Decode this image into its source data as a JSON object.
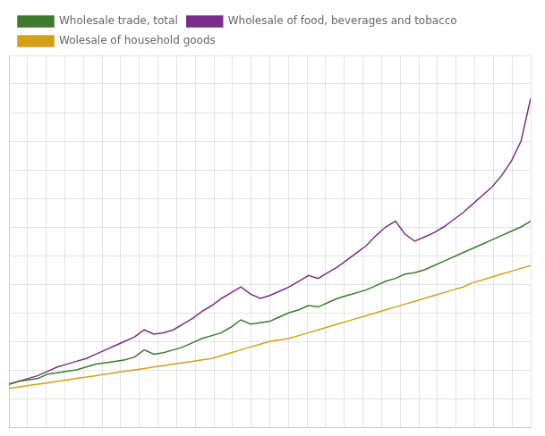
{
  "chart_data": {
    "type": "line",
    "x": [
      0,
      1,
      2,
      3,
      4,
      5,
      6,
      7,
      8,
      9,
      10,
      11,
      12,
      13,
      14,
      15,
      16,
      17,
      18,
      19,
      20,
      21,
      22,
      23,
      24,
      25,
      26,
      27,
      28,
      29,
      30,
      31,
      32,
      33,
      34,
      35,
      36,
      37,
      38,
      39,
      40,
      41,
      42,
      43,
      44,
      45,
      46,
      47,
      48,
      49,
      50,
      51,
      52,
      53,
      54
    ],
    "series": [
      {
        "name": "Wholesale trade, total",
        "color": "#3d7a2e",
        "values": [
          100.0,
          101.0,
          101.5,
          102.0,
          103.5,
          104.0,
          104.5,
          105.0,
          106.0,
          107.0,
          107.5,
          108.0,
          108.5,
          109.5,
          112.0,
          110.5,
          111.0,
          112.0,
          113.0,
          114.5,
          116.0,
          117.0,
          118.0,
          120.0,
          122.5,
          121.0,
          121.5,
          122.0,
          123.5,
          125.0,
          126.0,
          127.5,
          127.0,
          128.5,
          130.0,
          131.0,
          132.0,
          133.0,
          134.5,
          136.0,
          137.0,
          138.5,
          139.0,
          140.0,
          141.5,
          143.0,
          144.5,
          146.0,
          147.5,
          149.0,
          150.5,
          152.0,
          153.5,
          155.0,
          157.0
        ]
      },
      {
        "name": "Wholesale of food, beverages and tobacco",
        "color": "#7b2d8b",
        "values": [
          100.0,
          101.0,
          102.0,
          103.0,
          104.5,
          106.0,
          107.0,
          108.0,
          109.0,
          110.5,
          112.0,
          113.5,
          115.0,
          116.5,
          119.0,
          117.5,
          118.0,
          119.0,
          121.0,
          123.0,
          125.5,
          127.5,
          130.0,
          132.0,
          134.0,
          131.5,
          130.0,
          131.0,
          132.5,
          134.0,
          136.0,
          138.0,
          137.0,
          139.0,
          141.0,
          143.5,
          146.0,
          148.5,
          152.0,
          155.0,
          157.0,
          152.5,
          150.0,
          151.5,
          153.0,
          155.0,
          157.5,
          160.0,
          163.0,
          166.0,
          169.0,
          173.0,
          178.0,
          185.0,
          200.0
        ]
      },
      {
        "name": "Wolesale of household goods",
        "color": "#d4a017",
        "values": [
          98.5,
          99.0,
          99.5,
          100.0,
          100.5,
          101.0,
          101.5,
          102.0,
          102.5,
          103.0,
          103.5,
          104.0,
          104.5,
          105.0,
          105.5,
          106.0,
          106.5,
          107.0,
          107.5,
          108.0,
          108.5,
          109.0,
          110.0,
          111.0,
          112.0,
          113.0,
          114.0,
          115.0,
          115.5,
          116.0,
          117.0,
          118.0,
          119.0,
          120.0,
          121.0,
          122.0,
          123.0,
          124.0,
          125.0,
          126.0,
          127.0,
          128.0,
          129.0,
          130.0,
          131.0,
          132.0,
          133.0,
          134.0,
          135.5,
          136.5,
          137.5,
          138.5,
          139.5,
          140.5,
          141.5
        ]
      }
    ],
    "xlim": [
      0,
      54
    ],
    "ylim": [
      85,
      215
    ],
    "xticks": [
      0,
      1.9285714285714286,
      3.857142857142857,
      5.785714285714286,
      7.714285714285714,
      9.642857142857142,
      11.571428571428571,
      13.5,
      15.428571428571429,
      17.357142857142858,
      19.285714285714285,
      21.214285714285715,
      23.142857142857142,
      25.071428571428573,
      27,
      28.928571428571427,
      30.857142857142858,
      32.785714285714285,
      34.714285714285715,
      36.642857142857146,
      38.57142857142857,
      40.5,
      42.42857142857143,
      44.357142857142854,
      46.285714285714285,
      48.214285714285715,
      50.142857142857146,
      52.07142857142857,
      54
    ],
    "yticks": [
      85,
      95,
      105,
      115,
      125,
      135,
      145,
      155,
      165,
      175,
      185,
      195,
      205,
      215
    ],
    "grid": true,
    "legend": "upper left",
    "tick_labels": false
  }
}
